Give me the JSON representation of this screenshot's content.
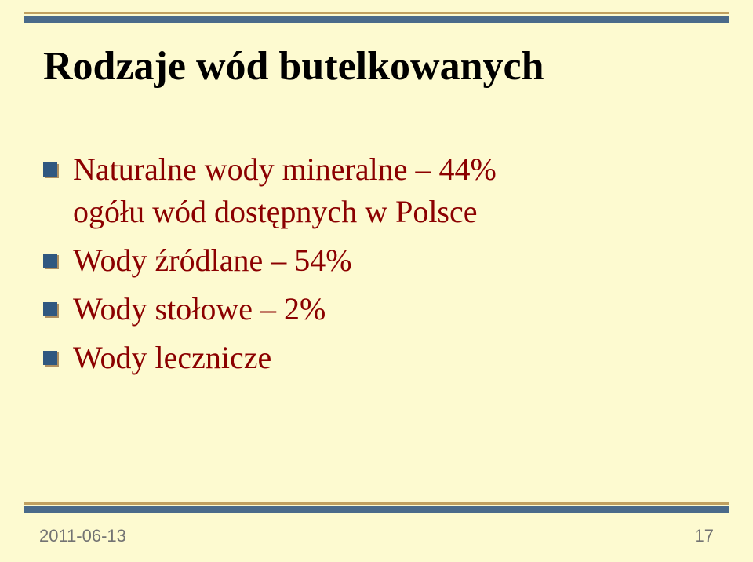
{
  "title": "Rodzaje wód butelkowanych",
  "items": [
    {
      "line1": "Naturalne wody mineralne – 44%",
      "line2": "ogółu wód dostępnych w Polsce"
    },
    {
      "line1": "Wody źródlane – 54%"
    },
    {
      "line1": "Wody stołowe – 2%"
    },
    {
      "line1": "Wody lecznicze"
    }
  ],
  "footer": {
    "date": "2011-06-13",
    "page": "17"
  },
  "colors": {
    "background": "#fdfad0",
    "item_text": "#8b0000",
    "title_text": "#000000",
    "divider_top_line": "#c0a060",
    "divider_thick": "#4a6a8a",
    "bullet_front": "#305880",
    "bullet_shadow": "#b09060",
    "footer_text": "#737373"
  },
  "fonts": {
    "title_size_pt": 39,
    "item_size_pt": 30,
    "footer_size_pt": 16,
    "family": "Times New Roman"
  }
}
